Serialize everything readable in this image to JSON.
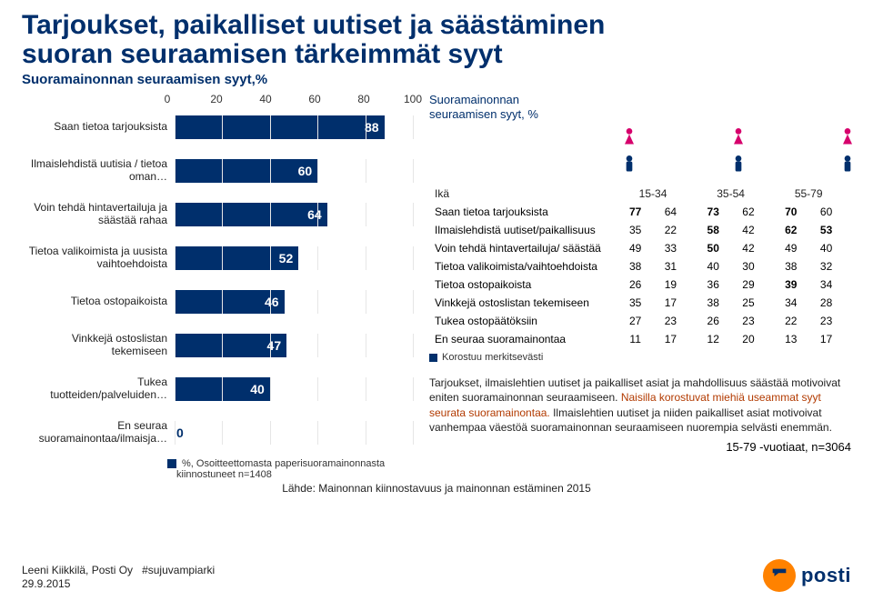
{
  "title_line1": "Tarjoukset, paikalliset uutiset ja säästäminen",
  "title_line2": "suoran seuraamisen tärkeimmät syyt",
  "subtitle": "Suoramainonnan seuraamisen syyt,%",
  "bar_chart": {
    "type": "bar",
    "orientation": "horizontal",
    "xmax": 100,
    "xticks": [
      0,
      20,
      40,
      60,
      80,
      100
    ],
    "bar_color": "#002f6c",
    "grid_color": "#e6e6e6",
    "value_fontsize": 14,
    "label_fontsize": 12,
    "rows": [
      {
        "label": "Saan tietoa tarjouksista",
        "value": 88
      },
      {
        "label": "Ilmaislehdistä uutisia / tietoa oman…",
        "value": 60
      },
      {
        "label": "Voin tehdä hintavertailuja ja säästää rahaa",
        "value": 64
      },
      {
        "label": "Tietoa valikoimista ja uusista vaihtoehdoista",
        "value": 52
      },
      {
        "label": "Tietoa ostopaikoista",
        "value": 46
      },
      {
        "label": "Vinkkejä ostoslistan tekemiseen",
        "value": 47
      },
      {
        "label": "Tukea tuotteiden/palveluiden…",
        "value": 40
      },
      {
        "label": "En seuraa suoramainontaa/ilmaisja…",
        "value": 0
      }
    ],
    "legend": "%, Osoitteettomasta paperisuoramainonnasta kiinnostuneet n=1408"
  },
  "right": {
    "subtitle": "Suoramainonnan seuraamisen syyt, %",
    "icon_colors": {
      "female": "#d6006c",
      "male": "#002f6c"
    },
    "age_header": "Ikä",
    "age_groups": [
      "15-34",
      "35-54",
      "55-79"
    ],
    "rows": [
      {
        "label": "Saan tietoa tarjouksista",
        "vals": [
          77,
          64,
          73,
          62,
          70,
          60
        ],
        "bold": [
          0,
          2,
          4
        ]
      },
      {
        "label": "Ilmaislehdistä uutiset/paikallisuus",
        "vals": [
          35,
          22,
          58,
          42,
          62,
          53
        ],
        "bold": [
          2,
          4,
          5
        ]
      },
      {
        "label": "Voin tehdä hintavertailuja/ säästää",
        "vals": [
          49,
          33,
          50,
          42,
          49,
          40
        ],
        "bold": [
          2
        ]
      },
      {
        "label": "Tietoa valikoimista/vaihtoehdoista",
        "vals": [
          38,
          31,
          40,
          30,
          38,
          32
        ],
        "bold": []
      },
      {
        "label": "Tietoa ostopaikoista",
        "vals": [
          26,
          19,
          36,
          29,
          39,
          34
        ],
        "bold": [
          4
        ]
      },
      {
        "label": "Vinkkejä ostoslistan tekemiseen",
        "vals": [
          35,
          17,
          38,
          25,
          34,
          28
        ],
        "bold": []
      },
      {
        "label": "Tukea ostopäätöksiin",
        "vals": [
          27,
          23,
          26,
          23,
          22,
          23
        ],
        "bold": []
      },
      {
        "label": "En seuraa suoramainontaa",
        "vals": [
          11,
          17,
          12,
          20,
          13,
          17
        ],
        "bold": []
      }
    ],
    "legend": "Korostuu merkitsevästi",
    "desc_plain1": "Tarjoukset, ilmaislehtien uutiset ja paikalliset asiat ja mahdollisuus säästää motivoivat eniten suoramainonnan seuraamiseen. ",
    "desc_hl": "Naisilla korostuvat miehiä useammat syyt seurata suoramainontaa.",
    "desc_plain2": " Ilmaislehtien uutiset ja niiden paikalliset asiat motivoivat vanhempaa väestöä suoramainonnan seuraamiseen nuorempia selvästi enemmän.",
    "footnote": "15-79 -vuotiaat, n=3064"
  },
  "source": "Lähde: Mainonnan kiinnostavuus ja mainonnan estäminen 2015",
  "footer_name": "Leeni Kiikkilä, Posti Oy",
  "footer_tag": "#sujuvampiarki",
  "footer_date": "29.9.2015",
  "logo_text": "posti",
  "logo_color": "#ff8200"
}
